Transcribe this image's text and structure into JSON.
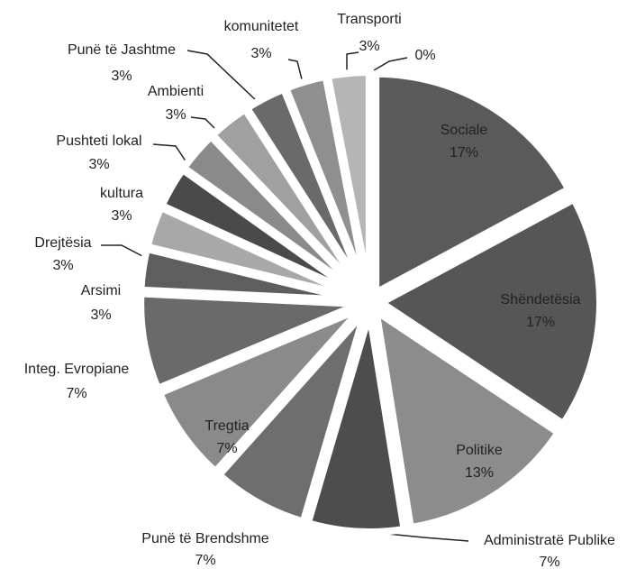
{
  "chart_data": {
    "type": "pie",
    "categories": [
      "Sociale",
      "Shëndetësia",
      "Politike",
      "Administratë Publike",
      "Punë të Brendshme",
      "Tregtia",
      "Integ. Evropiane",
      "Arsimi",
      "Drejtësia",
      "kultura",
      "Pushteti lokal",
      "Ambienti",
      "Punë të Jashtme",
      "komunitetet",
      "Transporti",
      null
    ],
    "values": [
      17,
      17,
      13,
      7,
      7,
      7,
      7,
      3,
      3,
      3,
      3,
      3,
      3,
      3,
      3,
      0
    ],
    "value_labels": [
      "17%",
      "17%",
      "13%",
      "7%",
      "7%",
      "7%",
      "7%",
      "3%",
      "3%",
      "3%",
      "3%",
      "3%",
      "3%",
      "3%",
      "3%",
      "0%"
    ],
    "colors": [
      "#5a5a5a",
      "#565656",
      "#8c8c8c",
      "#4d4d4d",
      "#6e6e6e",
      "#8a8a8a",
      "#6a6a6a",
      "#5e5e5e",
      "#a8a8a8",
      "#4a4a4a",
      "#8a8a8a",
      "#a0a0a0",
      "#6a6a6a",
      "#8f8f8f",
      "#b5b5b5",
      "#cccccc"
    ]
  }
}
